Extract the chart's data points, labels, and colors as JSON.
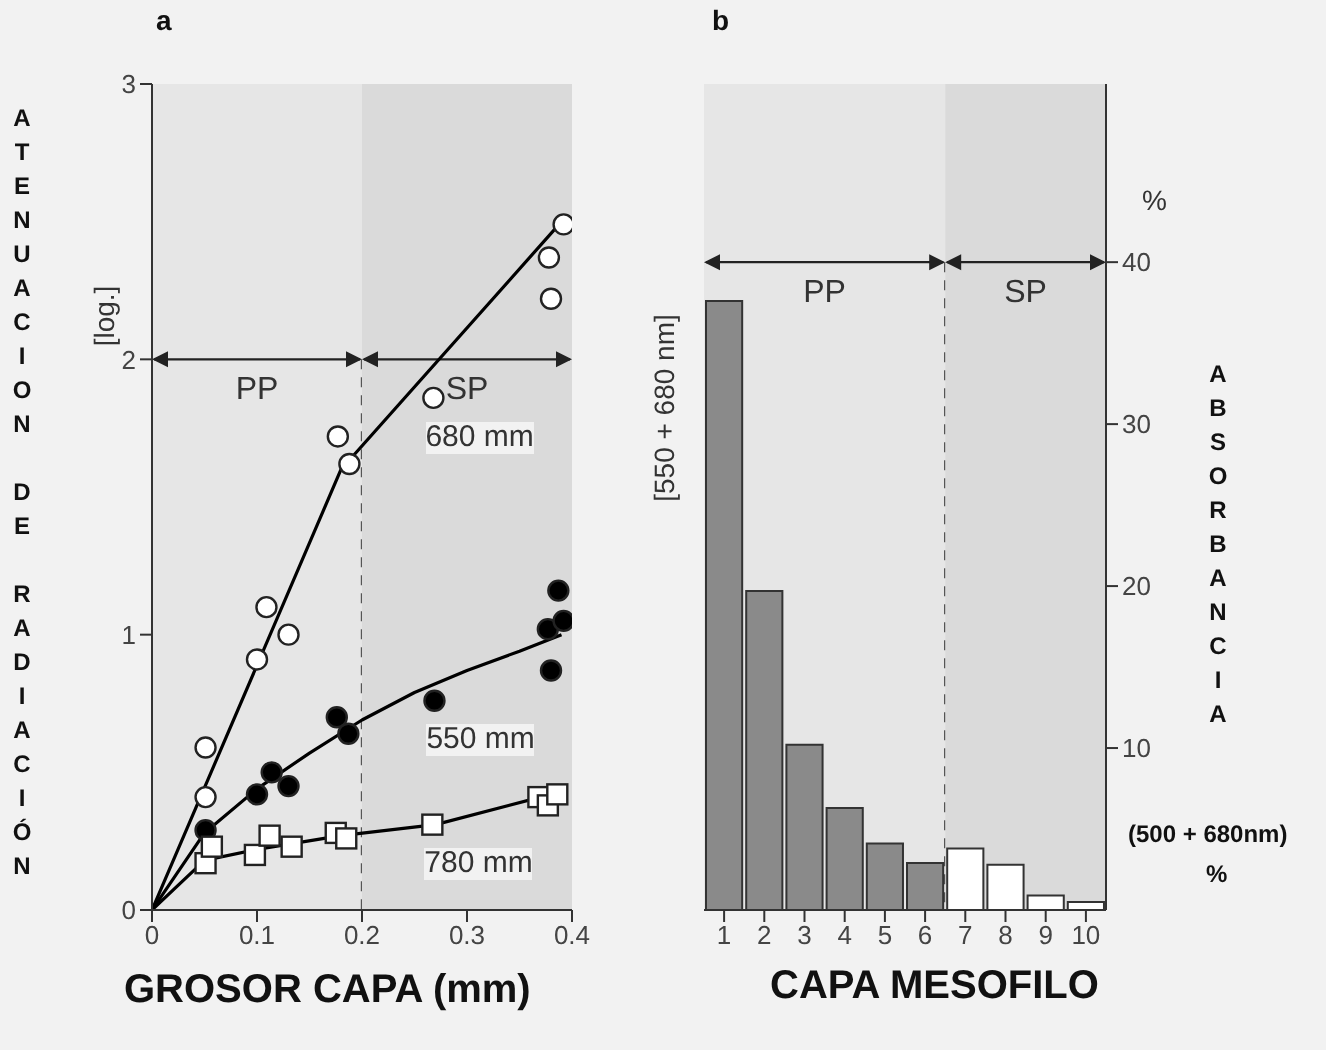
{
  "chart_data": [
    {
      "type": "scatter",
      "title": "a",
      "xlabel": "GROSOR CAPA (mm)",
      "ylabel": "ATENUACION DE RADIACIÓN",
      "annotations": [
        "[log.]"
      ],
      "xlim": [
        0,
        0.4
      ],
      "xticks": [
        0,
        0.1,
        0.2,
        0.3,
        0.4
      ],
      "ylim": [
        0,
        3
      ],
      "yticks": [
        0,
        1,
        2,
        3
      ],
      "bands": [
        {
          "axis": "x",
          "from": 0,
          "to": 0.2,
          "label": "PP",
          "color": "#e6e6e6"
        },
        {
          "axis": "x",
          "from": 0.2,
          "to": 0.4,
          "label": "SP",
          "color": "#dadada"
        }
      ],
      "series": [
        {
          "type": "scatter",
          "name": "680 mm",
          "color": "#ffffff",
          "marker": "circle",
          "x": [
            0.051,
            0.051,
            0.1,
            0.109,
            0.13,
            0.177,
            0.188,
            0.268,
            0.378,
            0.38,
            0.392
          ],
          "values": [
            0.59,
            0.41,
            0.91,
            1.1,
            1.0,
            1.72,
            1.62,
            1.86,
            2.37,
            2.22,
            2.49
          ]
        },
        {
          "type": "scatter",
          "name": "550 mm",
          "color": "#000000",
          "marker": "circle",
          "x": [
            0.051,
            0.1,
            0.114,
            0.13,
            0.176,
            0.187,
            0.269,
            0.377,
            0.38,
            0.387,
            0.392
          ],
          "values": [
            0.29,
            0.42,
            0.5,
            0.45,
            0.7,
            0.64,
            0.76,
            1.02,
            0.87,
            1.16,
            1.05
          ]
        },
        {
          "type": "scatter",
          "name": "780 mm",
          "color": "#ffffff",
          "marker": "square",
          "x": [
            0.051,
            0.057,
            0.098,
            0.112,
            0.133,
            0.175,
            0.185,
            0.267,
            0.368,
            0.377,
            0.386
          ],
          "values": [
            0.17,
            0.23,
            0.2,
            0.27,
            0.23,
            0.28,
            0.26,
            0.31,
            0.41,
            0.38,
            0.42
          ]
        },
        {
          "type": "line",
          "color": "#000000",
          "x": [
            0,
            0.18,
            0.39
          ],
          "values": [
            0,
            1.6,
            2.5
          ]
        },
        {
          "type": "line",
          "color": "#000000",
          "x": [
            0,
            0.05,
            0.1,
            0.15,
            0.2,
            0.25,
            0.3,
            0.35,
            0.39
          ],
          "values": [
            0,
            0.28,
            0.44,
            0.57,
            0.69,
            0.79,
            0.87,
            0.94,
            1.0
          ]
        },
        {
          "type": "line",
          "color": "#000000",
          "x": [
            0,
            0.05,
            0.1,
            0.18,
            0.27,
            0.38
          ],
          "values": [
            0,
            0.18,
            0.22,
            0.27,
            0.31,
            0.42
          ]
        }
      ]
    },
    {
      "type": "bar",
      "title": "b",
      "xlabel": "CAPA MESOFILO",
      "ylabel": "ABSORBANCIA",
      "annotations": [
        "%",
        "[550 + 680 nm]",
        "(500 + 680nm)",
        "%"
      ],
      "categories": [
        "1",
        "2",
        "3",
        "4",
        "5",
        "6",
        "7",
        "8",
        "9",
        "10"
      ],
      "values": [
        37.6,
        19.7,
        10.2,
        6.3,
        4.1,
        2.9,
        3.8,
        2.8,
        0.9,
        0.5
      ],
      "colors": [
        "#8a8a8a",
        "#8a8a8a",
        "#8a8a8a",
        "#8a8a8a",
        "#8a8a8a",
        "#8a8a8a",
        "#ffffff",
        "#ffffff",
        "#ffffff",
        "#ffffff"
      ],
      "ylim": [
        0,
        51
      ],
      "yticks": [
        10,
        20,
        30,
        40
      ],
      "bands": [
        {
          "axis": "x",
          "from": "1",
          "to": "6",
          "label": "PP",
          "color": "#e6e6e6"
        },
        {
          "axis": "x",
          "from": "7",
          "to": "10",
          "label": "SP",
          "color": "#dadada"
        }
      ]
    }
  ]
}
